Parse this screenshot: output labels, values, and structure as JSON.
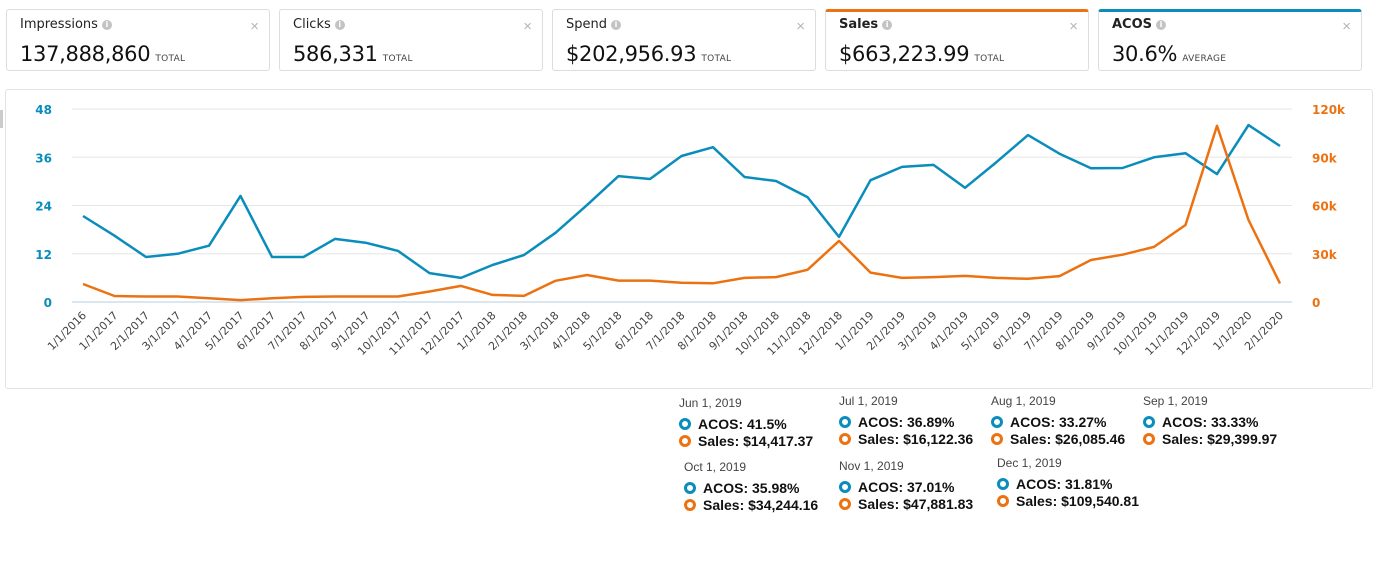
{
  "metric_cards": [
    {
      "label": "Impressions",
      "value": "137,888,860",
      "unit": "TOTAL",
      "selected": false
    },
    {
      "label": "Clicks",
      "value": "586,331",
      "unit": "TOTAL",
      "selected": false
    },
    {
      "label": "Spend",
      "value": "$202,956.93",
      "unit": "TOTAL",
      "selected": false
    },
    {
      "label": "Sales",
      "value": "$663,223.99",
      "unit": "TOTAL",
      "selected": true,
      "color": "#ec7211"
    },
    {
      "label": "ACOS",
      "value": "30.6%",
      "unit": "AVERAGE",
      "selected": true,
      "color": "#0a8dbb"
    }
  ],
  "icons": {
    "info": "info-icon",
    "close": "close-icon",
    "close_glyph": "×",
    "info_glyph": "i"
  },
  "chart_data": {
    "type": "line",
    "title": "",
    "xlabel": "",
    "ylabel_left": "ACOS",
    "ylabel_right": "Sales",
    "grid": true,
    "x": [
      "1/1/2016",
      "1/1/2017",
      "2/1/2017",
      "3/1/2017",
      "4/1/2017",
      "5/1/2017",
      "6/1/2017",
      "7/1/2017",
      "8/1/2017",
      "9/1/2017",
      "10/1/2017",
      "11/1/2017",
      "12/1/2017",
      "1/1/2018",
      "2/1/2018",
      "3/1/2018",
      "4/1/2018",
      "5/1/2018",
      "6/1/2018",
      "7/1/2018",
      "8/1/2018",
      "9/1/2018",
      "10/1/2018",
      "11/1/2018",
      "12/1/2018",
      "1/1/2019",
      "2/1/2019",
      "3/1/2019",
      "4/1/2019",
      "5/1/2019",
      "6/1/2019",
      "7/1/2019",
      "8/1/2019",
      "9/1/2019",
      "10/1/2019",
      "11/1/2019",
      "12/1/2019",
      "1/1/2020",
      "2/1/2020"
    ],
    "y_left": {
      "ticks": [
        "0",
        "12",
        "24",
        "36",
        "48"
      ],
      "range": [
        0,
        48
      ],
      "color": "#0a8dbb"
    },
    "y_right": {
      "ticks": [
        "0",
        "30k",
        "60k",
        "90k",
        "120k"
      ],
      "range": [
        0,
        120000
      ],
      "color": "#ec7211"
    },
    "series": [
      {
        "name": "ACOS",
        "axis": "left",
        "color": "#0a8dbb",
        "values": [
          21.4,
          16.5,
          11.2,
          12.0,
          14.0,
          26.4,
          11.2,
          11.2,
          15.7,
          14.7,
          12.7,
          7.2,
          6.0,
          9.2,
          11.7,
          17.2,
          24.1,
          31.3,
          30.6,
          36.3,
          38.5,
          31.1,
          30.1,
          26.1,
          16.2,
          30.3,
          33.6,
          34.1,
          28.4,
          34.8,
          41.5,
          36.89,
          33.27,
          33.33,
          35.98,
          37.01,
          31.81,
          44.0,
          38.8
        ]
      },
      {
        "name": "Sales",
        "axis": "right",
        "color": "#ec7211",
        "values": [
          11200,
          3700,
          3400,
          3400,
          2300,
          1200,
          2300,
          3200,
          3400,
          3400,
          3400,
          6500,
          10000,
          4400,
          3800,
          13200,
          16800,
          13300,
          13300,
          12000,
          11600,
          15000,
          15500,
          20000,
          38000,
          18300,
          15000,
          15500,
          16200,
          15000,
          14417.37,
          16122.36,
          26085.46,
          29399.97,
          34244.16,
          47881.83,
          109540.81,
          51000,
          11500
        ]
      }
    ],
    "tooltips": [
      {
        "date": "Jun 1, 2019",
        "acos": "ACOS: 41.5%",
        "sales": "Sales: $14,417.37"
      },
      {
        "date": "Jul 1, 2019",
        "acos": "ACOS: 36.89%",
        "sales": "Sales: $16,122.36"
      },
      {
        "date": "Aug 1, 2019",
        "acos": "ACOS: 33.27%",
        "sales": "Sales: $26,085.46"
      },
      {
        "date": "Sep 1, 2019",
        "acos": "ACOS: 33.33%",
        "sales": "Sales: $29,399.97"
      },
      {
        "date": "Oct 1, 2019",
        "acos": "ACOS: 35.98%",
        "sales": "Sales: $34,244.16"
      },
      {
        "date": "Nov 1, 2019",
        "acos": "ACOS: 37.01%",
        "sales": "Sales: $47,881.83"
      },
      {
        "date": "Dec 1, 2019",
        "acos": "ACOS: 31.81%",
        "sales": "Sales: $109,540.81"
      }
    ]
  }
}
